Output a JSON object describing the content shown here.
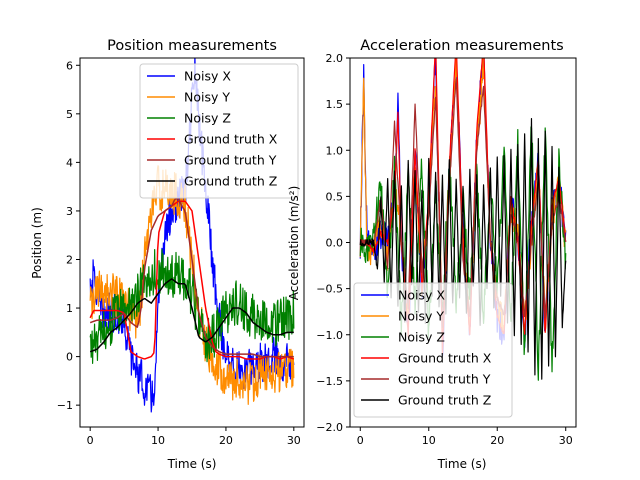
{
  "chart_data": [
    {
      "type": "line",
      "title": "Position measurements",
      "xlabel": "Time (s)",
      "ylabel": "Position (m)",
      "xlim": [
        -1.5,
        31.5
      ],
      "ylim": [
        -1.45,
        6.15
      ],
      "xticks": [
        0,
        10,
        20,
        30
      ],
      "yticks": [
        -1,
        0,
        1,
        2,
        3,
        4,
        5,
        6
      ],
      "legend_position": "upper-right",
      "series": [
        {
          "name": "Noisy X",
          "color": "#0000ff",
          "noise": 0.28,
          "x": [
            0,
            0.5,
            1,
            1.5,
            2,
            3,
            4,
            5,
            5.5,
            6,
            7,
            8,
            9,
            9.5,
            10,
            11,
            12,
            13,
            14,
            14.5,
            15,
            15.5,
            16,
            17,
            18,
            19,
            20,
            21,
            22,
            23,
            24,
            25,
            26,
            27,
            28,
            29,
            30
          ],
          "y": [
            1.5,
            1.6,
            1.4,
            1.0,
            0.9,
            0.9,
            0.9,
            0.8,
            0.3,
            0.0,
            -0.3,
            -0.6,
            -0.8,
            -0.7,
            1.0,
            2.5,
            3.0,
            3.2,
            3.4,
            4.2,
            5.3,
            5.9,
            4.8,
            3.5,
            2.0,
            0.8,
            0.0,
            -0.2,
            -0.3,
            -0.3,
            -0.2,
            -0.1,
            -0.1,
            0.0,
            -0.1,
            -0.1,
            0.0
          ]
        },
        {
          "name": "Noisy Y",
          "color": "#ff8c00",
          "noise": 0.3,
          "x": [
            0,
            1,
            2,
            3,
            4,
            5,
            6,
            7,
            7.5,
            8,
            9,
            10,
            11,
            12,
            13,
            14,
            15,
            16,
            17,
            18,
            19,
            20,
            21,
            22,
            23,
            24,
            25,
            26,
            27,
            28,
            29,
            30
          ],
          "y": [
            1.0,
            1.3,
            1.4,
            1.3,
            1.2,
            1.1,
            0.9,
            0.8,
            1.2,
            2.0,
            3.0,
            3.5,
            3.4,
            3.4,
            3.3,
            3.1,
            2.0,
            0.8,
            0.3,
            0.0,
            -0.2,
            -0.4,
            -0.5,
            -0.5,
            -0.6,
            -0.5,
            -0.4,
            -0.4,
            -0.3,
            -0.3,
            -0.3,
            -0.2
          ]
        },
        {
          "name": "Noisy Z",
          "color": "#008000",
          "noise": 0.32,
          "x": [
            0,
            1,
            2,
            3,
            4,
            5,
            6,
            7,
            8,
            9,
            10,
            11,
            12,
            13,
            14,
            15,
            16,
            17,
            18,
            19,
            20,
            21,
            22,
            23,
            24,
            25,
            26,
            27,
            28,
            29,
            30
          ],
          "y": [
            0.2,
            0.3,
            0.5,
            0.7,
            0.9,
            1.0,
            1.1,
            1.3,
            1.5,
            1.7,
            1.8,
            1.7,
            1.6,
            1.7,
            1.6,
            1.3,
            0.7,
            0.3,
            0.4,
            0.6,
            0.9,
            1.1,
            1.1,
            0.9,
            0.8,
            0.8,
            0.8,
            0.7,
            0.7,
            0.8,
            0.9
          ]
        },
        {
          "name": "Ground truth X",
          "color": "#ff0000",
          "noise": 0,
          "x": [
            0,
            0.5,
            1,
            4,
            5,
            5.5,
            6,
            7,
            8,
            9,
            9.5,
            10,
            11,
            12,
            13,
            14,
            15,
            16,
            17,
            18,
            18.5,
            19,
            20,
            21,
            22,
            23,
            24,
            25,
            26,
            27,
            28,
            29,
            30
          ],
          "y": [
            0.8,
            0.95,
            0.95,
            0.95,
            0.9,
            0.5,
            0.1,
            0.0,
            -0.05,
            0.0,
            0.1,
            2.5,
            3.0,
            3.1,
            3.2,
            3.2,
            3.0,
            2.0,
            1.0,
            0.3,
            0.1,
            0.05,
            0.0,
            0.0,
            0.0,
            -0.05,
            -0.05,
            -0.05,
            0.0,
            0.0,
            -0.05,
            0.0,
            -0.05
          ]
        },
        {
          "name": "Ground truth Y",
          "color": "#a52a2a",
          "noise": 0,
          "x": [
            0,
            1,
            2,
            3,
            4,
            5,
            6,
            7,
            7.5,
            8,
            9,
            10,
            11,
            12,
            12.5,
            13,
            13.5,
            14,
            15,
            16,
            17,
            18,
            19,
            20,
            21,
            22,
            23,
            24,
            25,
            26,
            27,
            28,
            29,
            30
          ],
          "y": [
            0.7,
            0.75,
            0.75,
            0.75,
            0.8,
            0.9,
            0.7,
            0.6,
            1.0,
            1.8,
            2.6,
            2.9,
            3.0,
            3.1,
            3.25,
            3.25,
            3.1,
            3.0,
            2.0,
            0.9,
            0.4,
            0.2,
            0.1,
            0.05,
            0.05,
            0.05,
            0.05,
            0.05,
            0.0,
            0.0,
            0.0,
            0.0,
            0.0,
            0.0
          ]
        },
        {
          "name": "Ground truth Z",
          "color": "#000000",
          "noise": 0,
          "x": [
            0,
            1,
            2,
            3,
            4,
            5,
            6,
            7,
            8,
            9,
            10,
            11,
            12,
            13,
            14,
            15,
            16,
            17,
            18,
            19,
            20,
            21,
            22,
            23,
            24,
            25,
            26,
            27,
            28,
            29,
            30
          ],
          "y": [
            0.1,
            0.15,
            0.3,
            0.5,
            0.6,
            0.75,
            0.9,
            1.1,
            1.2,
            1.1,
            1.3,
            1.5,
            1.6,
            1.5,
            1.5,
            1.0,
            0.4,
            0.3,
            0.4,
            0.6,
            0.8,
            1.0,
            1.0,
            0.9,
            0.7,
            0.6,
            0.5,
            0.45,
            0.45,
            0.5,
            0.5
          ]
        }
      ]
    },
    {
      "type": "line",
      "title": "Acceleration measurements",
      "xlabel": "Time (s)",
      "ylabel": "Acceleration (m/s²)",
      "xlim": [
        -1.5,
        31.5
      ],
      "ylim": [
        -2.0,
        2.0
      ],
      "xticks": [
        0,
        10,
        20,
        30
      ],
      "yticks": [
        -2.0,
        -1.5,
        -1.0,
        -0.5,
        0.0,
        0.5,
        1.0,
        1.5,
        2.0
      ],
      "legend_position": "lower-left",
      "series": [
        {
          "name": "Noisy X",
          "color": "#0000ff",
          "noise": 0.12,
          "x": [
            0,
            0.5,
            1,
            2,
            3,
            4,
            5,
            5.5,
            6,
            7,
            8,
            9,
            10,
            11,
            12,
            13,
            14,
            15,
            16,
            17,
            18,
            19,
            20,
            21,
            22,
            23,
            24,
            25,
            26,
            27,
            28,
            29,
            30
          ],
          "y": [
            0.0,
            1.8,
            0.0,
            -0.1,
            0.1,
            0.0,
            0.5,
            1.5,
            0.0,
            -1.0,
            1.0,
            -0.5,
            0.5,
            2.0,
            -1.2,
            0.8,
            2.0,
            0.0,
            -1.0,
            1.2,
            2.0,
            0.0,
            -0.8,
            -1.0,
            0.5,
            0.0,
            -1.0,
            0.2,
            0.9,
            -1.0,
            0.4,
            0.7,
            0.0
          ]
        },
        {
          "name": "Noisy Y",
          "color": "#ff8c00",
          "noise": 0.12,
          "x": [
            0,
            0.5,
            1,
            2,
            3,
            4,
            5,
            6,
            7,
            8,
            9,
            10,
            11,
            12,
            13,
            14,
            15,
            16,
            17,
            18,
            19,
            20,
            21,
            22,
            23,
            24,
            25,
            26,
            27,
            28,
            29,
            30
          ],
          "y": [
            0.0,
            1.7,
            -0.2,
            0.0,
            0.2,
            -0.2,
            0.6,
            0.0,
            -0.8,
            0.9,
            -0.4,
            0.4,
            1.8,
            -1.0,
            0.7,
            1.9,
            0.0,
            -0.9,
            1.0,
            1.9,
            0.1,
            -0.7,
            -0.9,
            0.4,
            0.1,
            -0.9,
            0.1,
            0.8,
            -0.9,
            0.3,
            0.6,
            0.0
          ]
        },
        {
          "name": "Noisy Z",
          "color": "#008000",
          "noise": 0.12,
          "x": [
            0,
            1,
            2,
            3,
            4,
            5,
            6,
            7,
            8,
            9,
            10,
            11,
            12,
            13,
            14,
            15,
            16,
            17,
            18,
            19,
            20,
            21,
            22,
            23,
            24,
            25,
            26,
            27,
            28,
            29,
            30
          ],
          "y": [
            0.0,
            -0.1,
            0.1,
            0.6,
            -0.5,
            0.8,
            -0.9,
            0.7,
            -0.6,
            0.9,
            -1.0,
            0.6,
            -0.8,
            0.9,
            -0.7,
            0.5,
            -0.6,
            0.8,
            -0.9,
            0.7,
            -0.5,
            1.0,
            -0.8,
            1.1,
            -1.2,
            1.3,
            -1.4,
            1.2,
            -1.3,
            0.9,
            -0.2
          ]
        },
        {
          "name": "Ground truth X",
          "color": "#ff0000",
          "noise": 0.02,
          "x": [
            0,
            1,
            2,
            3,
            4,
            5,
            5.5,
            6,
            7,
            8,
            9,
            10,
            11,
            12,
            13,
            14,
            15,
            16,
            17,
            18,
            19,
            20,
            21,
            22,
            23,
            24,
            25,
            26,
            27,
            28,
            29,
            30
          ],
          "y": [
            0.0,
            0.0,
            -0.1,
            0.1,
            0.0,
            0.5,
            1.4,
            0.0,
            -1.0,
            1.0,
            -0.5,
            0.5,
            2.2,
            -1.2,
            0.8,
            2.2,
            0.0,
            -1.0,
            1.2,
            2.2,
            0.0,
            -0.8,
            -1.0,
            0.5,
            0.0,
            -1.0,
            0.2,
            0.9,
            -1.0,
            0.4,
            0.7,
            0.0
          ]
        },
        {
          "name": "Ground truth Y",
          "color": "#a52a2a",
          "noise": 0.02,
          "x": [
            0,
            1,
            2,
            3,
            4,
            5,
            6,
            7,
            8,
            9,
            10,
            11,
            12,
            13,
            14,
            15,
            16,
            17,
            18,
            19,
            20,
            21,
            22,
            23,
            24,
            25,
            26,
            27,
            28,
            29,
            30
          ],
          "y": [
            0.0,
            0.0,
            0.0,
            0.5,
            -0.3,
            1.3,
            0.0,
            -0.7,
            1.5,
            -0.3,
            0.3,
            1.6,
            -0.9,
            0.6,
            1.8,
            -0.2,
            -0.8,
            1.0,
            1.7,
            0.0,
            -0.6,
            -0.8,
            0.3,
            0.1,
            -0.8,
            0.0,
            0.7,
            -0.8,
            0.2,
            0.5,
            0.0
          ]
        },
        {
          "name": "Ground truth Z",
          "color": "#000000",
          "noise": 0.03,
          "x": [
            0,
            1,
            1.5,
            2,
            2.5,
            3,
            3.5,
            4,
            4.5,
            5,
            5.5,
            6,
            6.5,
            7,
            7.5,
            8,
            8.5,
            9,
            9.5,
            10,
            10.5,
            11,
            11.5,
            12,
            12.5,
            13,
            13.5,
            14,
            14.5,
            15,
            15.5,
            16,
            16.5,
            17,
            17.5,
            18,
            18.5,
            19,
            19.5,
            20,
            20.5,
            21,
            21.5,
            22,
            22.5,
            23,
            23.5,
            24,
            24.5,
            25,
            25.5,
            26,
            26.5,
            27,
            27.5,
            28,
            28.5,
            29,
            29.5,
            30
          ],
          "y": [
            0.0,
            0.0,
            0.0,
            0.0,
            -0.3,
            0.5,
            -0.4,
            0.7,
            -0.6,
            0.8,
            -0.7,
            0.6,
            -0.9,
            0.9,
            -0.5,
            0.8,
            -0.8,
            0.6,
            -0.9,
            0.9,
            -0.6,
            0.8,
            -0.7,
            0.7,
            -0.8,
            0.9,
            -0.7,
            0.7,
            -0.6,
            0.6,
            -0.8,
            0.8,
            -0.5,
            0.7,
            -0.9,
            0.6,
            -0.5,
            0.8,
            -0.7,
            0.9,
            -0.6,
            0.9,
            -0.9,
            1.0,
            -1.0,
            1.1,
            -1.1,
            1.2,
            -1.2,
            1.3,
            -1.4,
            1.1,
            -1.5,
            1.2,
            -1.3,
            1.0,
            -1.2,
            0.8,
            -0.9,
            -0.2
          ]
        }
      ]
    }
  ]
}
